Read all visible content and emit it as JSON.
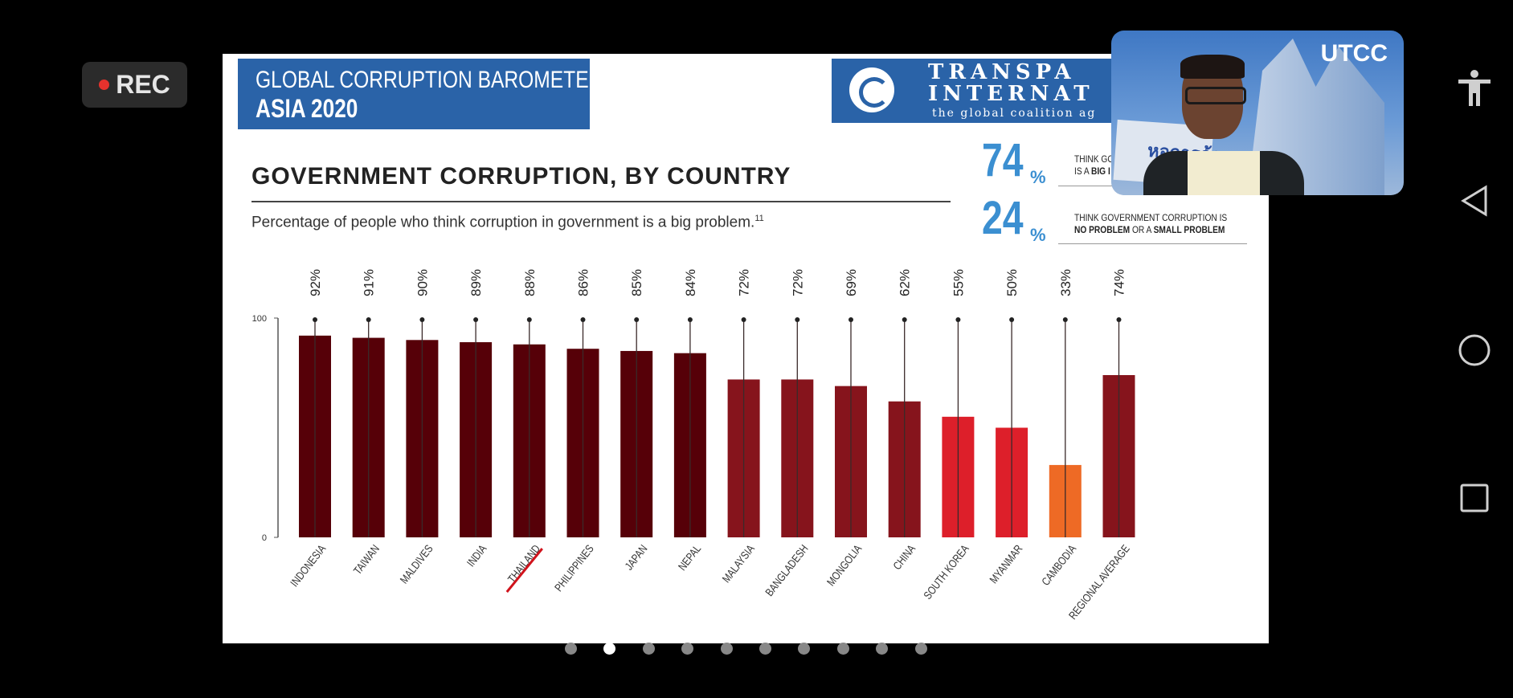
{
  "recording": {
    "label": "REC",
    "dot_color": "#e5322d"
  },
  "slide": {
    "header_line1": "GLOBAL CORRUPTION BAROMETER",
    "header_line2": "ASIA 2020",
    "logo": {
      "line1": "TRANSPA",
      "line2": "INTERNAT",
      "tagline": "the global coalition ag"
    },
    "title": "GOVERNMENT CORRUPTION, BY COUNTRY",
    "subtitle": "Percentage of people who think corruption in government is a big problem.",
    "footnote": "11",
    "stats": [
      {
        "value": "74",
        "unit": "%",
        "line1": "THINK GO",
        "line2_prefix": "IS A ",
        "line2_bold": "BIG I"
      },
      {
        "value": "24",
        "unit": "%",
        "line1": "THINK GOVERNMENT CORRUPTION IS",
        "line2_bold": "NO PROBLEM",
        "line2_mid": " OR A ",
        "line2_bold2": "SMALL PROBLEM"
      }
    ]
  },
  "chart_data": {
    "type": "bar",
    "title": "GOVERNMENT CORRUPTION, BY COUNTRY",
    "categories": [
      "INDONESIA",
      "TAIWAN",
      "MALDIVES",
      "INDIA",
      "THAILAND",
      "PHILIPPINES",
      "JAPAN",
      "NEPAL",
      "MALAYSIA",
      "BANGLADESH",
      "MONGOLIA",
      "CHINA",
      "SOUTH KOREA",
      "MYANMAR",
      "CAMBODIA",
      "REGIONAL AVERAGE"
    ],
    "values": [
      92,
      91,
      90,
      89,
      88,
      86,
      85,
      84,
      72,
      72,
      69,
      62,
      55,
      50,
      33,
      74
    ],
    "value_labels": [
      "92%",
      "91%",
      "90%",
      "89%",
      "88%",
      "86%",
      "85%",
      "84%",
      "72%",
      "72%",
      "69%",
      "62%",
      "55%",
      "50%",
      "33%",
      "74%"
    ],
    "colors": [
      "#560008",
      "#560008",
      "#560008",
      "#560008",
      "#560008",
      "#560008",
      "#560008",
      "#560008",
      "#86141c",
      "#86141c",
      "#86141c",
      "#86141c",
      "#dd1f2a",
      "#dd1f2a",
      "#ee6a25",
      "#86141c"
    ],
    "y_ticks": [
      "0",
      "100"
    ],
    "ylim": [
      0,
      100
    ],
    "highlighted": "THAILAND",
    "highlight_color": "#d0131c",
    "grid": false
  },
  "pager": {
    "count": 10,
    "active_index": 1
  },
  "webcam": {
    "label": "UTCC",
    "sign_text": "หอการค้า"
  },
  "android_nav": [
    "accessibility-icon",
    "back-icon",
    "home-icon",
    "recents-icon"
  ]
}
